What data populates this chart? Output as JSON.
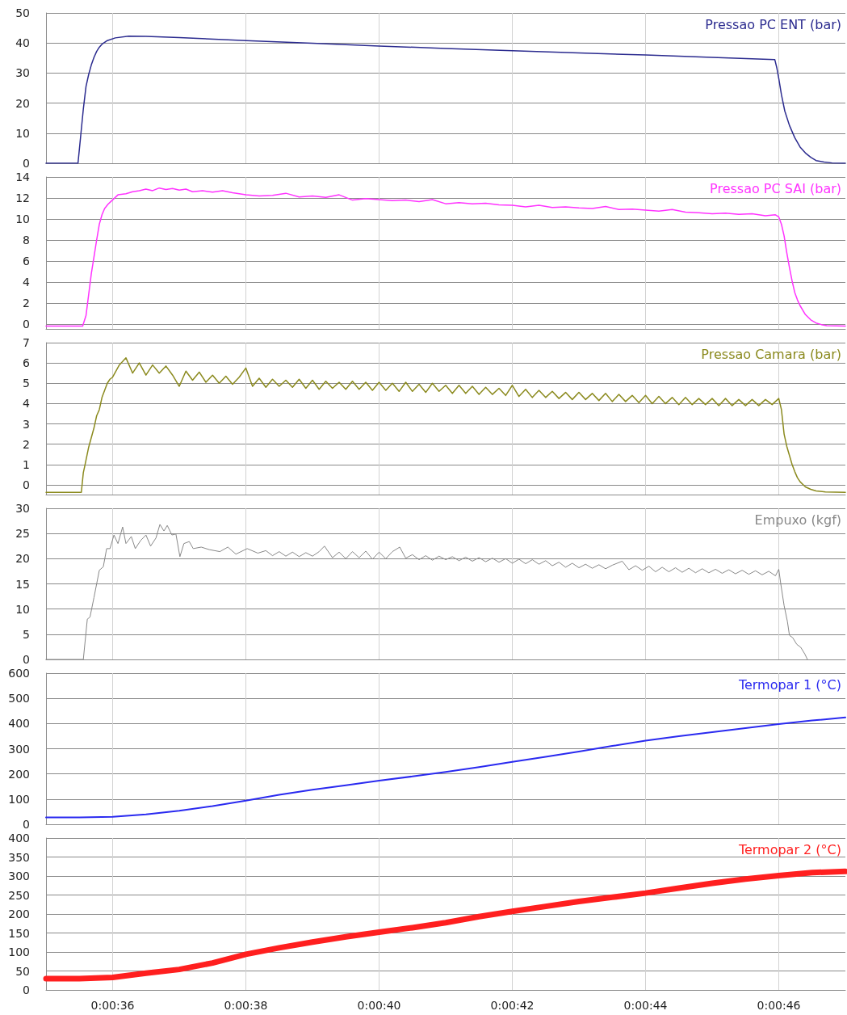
{
  "chart_data": [
    {
      "type": "line",
      "series": [
        {
          "name": "Pressao PC ENT (bar)",
          "color": "#2b2b8f",
          "x": [
            35,
            35.48,
            35.52,
            35.56,
            35.6,
            35.64,
            35.68,
            35.72,
            35.76,
            35.8,
            35.84,
            35.92,
            36.04,
            36.24,
            36.5,
            37,
            38,
            39,
            40,
            41,
            42,
            43,
            44,
            45,
            45.94,
            45.97,
            46,
            46.04,
            46.09,
            46.16,
            46.24,
            46.32,
            46.4,
            46.48,
            46.56,
            46.68,
            46.8,
            47
          ],
          "values": [
            0,
            0,
            9,
            18,
            25.5,
            29.5,
            32.7,
            35.2,
            37.2,
            38.6,
            39.6,
            40.8,
            41.7,
            42.3,
            42.2,
            41.8,
            40.8,
            39.9,
            39,
            38.2,
            37.4,
            36.7,
            36,
            35.2,
            34.5,
            31.8,
            28.2,
            22.8,
            17.4,
            12.6,
            8.5,
            5.4,
            3.4,
            2,
            0.9,
            0.4,
            0.1,
            0
          ]
        }
      ],
      "xlim": [
        35,
        47
      ],
      "xticks": [
        36,
        38,
        40,
        42,
        44,
        46
      ],
      "ylim": [
        0,
        50
      ],
      "yticks": [
        0,
        10,
        20,
        30,
        40,
        50
      ],
      "grid": true,
      "legend": "top right",
      "tick_labels": "y"
    },
    {
      "type": "line",
      "series": [
        {
          "name": "Pressao PC SAI (bar)",
          "color": "#ff33ff",
          "x": [
            35,
            35.55,
            35.6,
            35.64,
            35.68,
            35.72,
            35.76,
            35.8,
            35.84,
            35.88,
            35.93,
            35.98,
            36.08,
            36.2,
            36.3,
            36.4,
            36.5,
            36.6,
            36.7,
            36.8,
            36.9,
            37,
            37.1,
            37.2,
            37.35,
            37.5,
            37.65,
            37.8,
            38,
            38.2,
            38.4,
            38.6,
            38.8,
            39,
            39.2,
            39.4,
            39.6,
            39.8,
            40,
            40.2,
            40.4,
            40.6,
            40.8,
            41,
            41.2,
            41.4,
            41.6,
            41.8,
            42,
            42.2,
            42.4,
            42.6,
            42.8,
            43,
            43.2,
            43.4,
            43.6,
            43.8,
            44,
            44.2,
            44.4,
            44.6,
            44.8,
            45,
            45.2,
            45.4,
            45.6,
            45.8,
            45.95,
            46,
            46.04,
            46.08,
            46.12,
            46.16,
            46.2,
            46.24,
            46.28,
            46.32,
            46.4,
            46.48,
            46.56,
            46.64,
            46.72,
            47
          ],
          "values": [
            -0.2,
            -0.2,
            0.8,
            2.8,
            4.8,
            6.4,
            8,
            9.5,
            10.4,
            11,
            11.4,
            11.7,
            12.3,
            12.4,
            12.6,
            12.7,
            12.85,
            12.7,
            12.95,
            12.8,
            12.9,
            12.75,
            12.85,
            12.6,
            12.7,
            12.55,
            12.7,
            12.5,
            12.3,
            12.2,
            12.25,
            12.45,
            12.1,
            12.2,
            12.05,
            12.3,
            11.8,
            11.95,
            11.85,
            11.75,
            11.8,
            11.65,
            11.85,
            11.45,
            11.55,
            11.45,
            11.5,
            11.35,
            11.3,
            11.15,
            11.3,
            11.1,
            11.15,
            11.05,
            11,
            11.2,
            10.9,
            10.95,
            10.85,
            10.75,
            10.9,
            10.65,
            10.6,
            10.5,
            10.55,
            10.45,
            10.5,
            10.3,
            10.4,
            10.2,
            9.5,
            8.4,
            6.8,
            5.4,
            4.1,
            3,
            2.3,
            1.75,
            0.9,
            0.4,
            0.1,
            -0.05,
            -0.15,
            -0.2
          ]
        }
      ],
      "xlim": [
        35,
        47
      ],
      "xticks": [
        36,
        38,
        40,
        42,
        44,
        46
      ],
      "ylim": [
        -0.5,
        14
      ],
      "yticks": [
        0,
        2,
        4,
        6,
        8,
        10,
        12,
        14
      ],
      "grid": true,
      "legend": "top right",
      "tick_labels": "y"
    },
    {
      "type": "line",
      "series": [
        {
          "name": "Pressao Camara (bar)",
          "color": "#8b8a1e",
          "x": [
            35,
            35.53,
            35.56,
            35.58,
            35.64,
            35.72,
            35.76,
            35.8,
            35.84,
            35.88,
            35.92,
            35.96,
            36,
            36.1,
            36.2,
            36.3,
            36.4,
            36.5,
            36.6,
            36.7,
            36.8,
            36.9,
            37,
            37.1,
            37.2,
            37.3,
            37.4,
            37.5,
            37.6,
            37.7,
            37.8,
            37.9,
            38,
            38.1,
            38.2,
            38.3,
            38.4,
            38.5,
            38.6,
            38.7,
            38.8,
            38.9,
            39,
            39.1,
            39.2,
            39.3,
            39.4,
            39.5,
            39.6,
            39.7,
            39.8,
            39.9,
            40,
            40.1,
            40.2,
            40.3,
            40.4,
            40.5,
            40.6,
            40.7,
            40.8,
            40.9,
            41,
            41.1,
            41.2,
            41.3,
            41.4,
            41.5,
            41.6,
            41.7,
            41.8,
            41.9,
            42,
            42.1,
            42.2,
            42.3,
            42.4,
            42.5,
            42.6,
            42.7,
            42.8,
            42.9,
            43,
            43.1,
            43.2,
            43.3,
            43.4,
            43.5,
            43.6,
            43.7,
            43.8,
            43.9,
            44,
            44.1,
            44.2,
            44.3,
            44.4,
            44.5,
            44.6,
            44.7,
            44.8,
            44.9,
            45,
            45.1,
            45.2,
            45.3,
            45.4,
            45.5,
            45.6,
            45.7,
            45.8,
            45.9,
            46,
            46.04,
            46.08,
            46.12,
            46.16,
            46.2,
            46.24,
            46.28,
            46.32,
            46.4,
            46.48,
            46.56,
            46.7,
            47
          ],
          "values": [
            -0.37,
            -0.37,
            0.6,
            0.9,
            1.85,
            2.8,
            3.4,
            3.7,
            4.3,
            4.65,
            5,
            5.2,
            5.3,
            5.9,
            6.25,
            5.5,
            6,
            5.4,
            5.9,
            5.5,
            5.85,
            5.4,
            4.85,
            5.6,
            5.15,
            5.55,
            5.05,
            5.4,
            5,
            5.35,
            4.95,
            5.3,
            5.75,
            4.85,
            5.25,
            4.8,
            5.2,
            4.85,
            5.15,
            4.8,
            5.2,
            4.75,
            5.15,
            4.7,
            5.1,
            4.75,
            5.05,
            4.7,
            5.1,
            4.7,
            5.05,
            4.65,
            5.05,
            4.65,
            5,
            4.6,
            5.05,
            4.6,
            4.95,
            4.55,
            5,
            4.6,
            4.9,
            4.5,
            4.9,
            4.5,
            4.85,
            4.45,
            4.8,
            4.45,
            4.75,
            4.4,
            4.9,
            4.35,
            4.7,
            4.3,
            4.65,
            4.3,
            4.6,
            4.25,
            4.55,
            4.2,
            4.55,
            4.2,
            4.5,
            4.15,
            4.5,
            4.1,
            4.45,
            4.1,
            4.4,
            4.05,
            4.4,
            4,
            4.35,
            4,
            4.3,
            3.95,
            4.3,
            3.95,
            4.25,
            3.95,
            4.25,
            3.9,
            4.25,
            3.9,
            4.2,
            3.9,
            4.2,
            3.9,
            4.2,
            3.95,
            4.25,
            3.7,
            2.5,
            1.9,
            1.45,
            1,
            0.65,
            0.35,
            0.15,
            -0.1,
            -0.22,
            -0.3,
            -0.35,
            -0.37
          ]
        }
      ],
      "xlim": [
        35,
        47
      ],
      "xticks": [
        36,
        38,
        40,
        42,
        44,
        46
      ],
      "ylim": [
        -0.5,
        7
      ],
      "yticks": [
        0,
        1,
        2,
        3,
        4,
        5,
        6,
        7
      ],
      "grid": true,
      "legend": "top right",
      "tick_labels": "y"
    },
    {
      "type": "line",
      "series": [
        {
          "name": "Empuxo (kgf)",
          "color": "#888888",
          "x": [
            35,
            35.56,
            35.62,
            35.66,
            35.72,
            35.8,
            35.86,
            35.91,
            35.96,
            36.02,
            36.08,
            36.15,
            36.2,
            36.28,
            36.34,
            36.42,
            36.5,
            36.57,
            36.65,
            36.71,
            36.77,
            36.82,
            36.89,
            36.95,
            37.01,
            37.07,
            37.15,
            37.21,
            37.33,
            37.45,
            37.61,
            37.73,
            37.85,
            38.02,
            38.18,
            38.3,
            38.4,
            38.5,
            38.6,
            38.7,
            38.8,
            38.9,
            39,
            39.1,
            39.18,
            39.3,
            39.4,
            39.5,
            39.6,
            39.7,
            39.8,
            39.9,
            40,
            40.1,
            40.2,
            40.31,
            40.4,
            40.5,
            40.6,
            40.7,
            40.8,
            40.9,
            41,
            41.1,
            41.2,
            41.3,
            41.4,
            41.5,
            41.6,
            41.7,
            41.8,
            41.9,
            42,
            42.1,
            42.2,
            42.3,
            42.4,
            42.5,
            42.6,
            42.7,
            42.8,
            42.9,
            43,
            43.1,
            43.2,
            43.3,
            43.4,
            43.5,
            43.65,
            43.75,
            43.85,
            43.95,
            44.05,
            44.15,
            44.25,
            44.35,
            44.45,
            44.55,
            44.65,
            44.75,
            44.85,
            44.95,
            45.05,
            45.15,
            45.25,
            45.35,
            45.45,
            45.55,
            45.65,
            45.75,
            45.85,
            45.95,
            46,
            46.03,
            46.08,
            46.13,
            46.16,
            46.21,
            46.27,
            46.33,
            46.39,
            46.43
          ],
          "values": [
            0,
            0,
            8,
            8.4,
            12.3,
            17.7,
            18.4,
            22,
            22,
            24.7,
            23,
            26.3,
            23,
            24.4,
            22,
            23.6,
            24.7,
            22.5,
            24.1,
            26.8,
            25.5,
            26.6,
            24.7,
            24.9,
            20.4,
            23,
            23.4,
            22,
            22.3,
            21.8,
            21.4,
            22.3,
            20.9,
            22,
            21.1,
            21.6,
            20.6,
            21.4,
            20.5,
            21.3,
            20.4,
            21.2,
            20.5,
            21.4,
            22.5,
            20.2,
            21.3,
            20,
            21.4,
            20.2,
            21.5,
            19.9,
            21.3,
            20,
            21.4,
            22.3,
            20.1,
            20.8,
            19.8,
            20.6,
            19.7,
            20.5,
            19.8,
            20.4,
            19.6,
            20.3,
            19.5,
            20.2,
            19.4,
            20.1,
            19.3,
            20,
            19.1,
            19.9,
            19,
            19.8,
            18.9,
            19.6,
            18.6,
            19.3,
            18.3,
            19.1,
            18.2,
            18.9,
            18.1,
            18.8,
            18,
            18.7,
            19.5,
            17.8,
            18.6,
            17.7,
            18.5,
            17.4,
            18.3,
            17.4,
            18.2,
            17.3,
            18.1,
            17.2,
            18,
            17.2,
            17.9,
            17.1,
            17.8,
            17,
            17.7,
            16.9,
            17.6,
            16.8,
            17.5,
            16.6,
            17.9,
            15,
            10.7,
            7.5,
            4.8,
            4.3,
            3,
            2.4,
            1.1,
            0
          ]
        }
      ],
      "xlim": [
        35,
        47
      ],
      "xticks": [
        36,
        38,
        40,
        42,
        44,
        46
      ],
      "ylim": [
        0,
        30
      ],
      "yticks": [
        0,
        5,
        10,
        15,
        20,
        25,
        30
      ],
      "grid": true,
      "legend": "top right",
      "tick_labels": "y"
    },
    {
      "type": "line",
      "series": [
        {
          "name": "Termopar 1 (°C)",
          "color": "#2a2af0",
          "x": [
            35,
            35.5,
            36,
            36.5,
            37,
            37.5,
            38,
            38.5,
            39,
            39.5,
            40,
            40.5,
            41,
            41.5,
            42,
            42.5,
            43,
            43.5,
            44,
            44.5,
            45,
            45.5,
            46,
            46.5,
            47
          ],
          "values": [
            27,
            27,
            30,
            39,
            54,
            72,
            94,
            117,
            137,
            155,
            173,
            190,
            208,
            227,
            248,
            268,
            289,
            311,
            332,
            350,
            366,
            382,
            398,
            412,
            424
          ]
        }
      ],
      "xlim": [
        35,
        47
      ],
      "xticks": [
        36,
        38,
        40,
        42,
        44,
        46
      ],
      "ylim": [
        0,
        600
      ],
      "yticks": [
        0,
        100,
        200,
        300,
        400,
        500,
        600
      ],
      "grid": true,
      "legend": "top right",
      "tick_labels": "y"
    },
    {
      "type": "line",
      "series": [
        {
          "name": "Termopar 2 (°C)",
          "color": "#ff1f1f",
          "x": [
            35,
            35.5,
            36,
            36.5,
            37,
            37.5,
            38,
            38.5,
            39,
            39.5,
            40,
            40.5,
            41,
            41.5,
            42,
            42.5,
            43,
            43.5,
            44,
            44.5,
            45,
            45.5,
            46,
            46.5,
            47
          ],
          "values": [
            30,
            30,
            33,
            44,
            54,
            71,
            94,
            111,
            126,
            140,
            152,
            164,
            177,
            193,
            207,
            220,
            233,
            244,
            255,
            268,
            281,
            292,
            301,
            309,
            312
          ]
        }
      ],
      "xlim": [
        35,
        47
      ],
      "xticks": [
        {
          "value": 36,
          "label": "0:00:36"
        },
        {
          "value": 38,
          "label": "0:00:38"
        },
        {
          "value": 40,
          "label": "0:00:40"
        },
        {
          "value": 42,
          "label": "0:00:42"
        },
        {
          "value": 44,
          "label": "0:00:44"
        },
        {
          "value": 46,
          "label": "0:00:46"
        }
      ],
      "ylim": [
        0,
        400
      ],
      "yticks": [
        0,
        50,
        100,
        150,
        200,
        250,
        300,
        350,
        400
      ],
      "grid": true,
      "legend": "top right"
    }
  ]
}
